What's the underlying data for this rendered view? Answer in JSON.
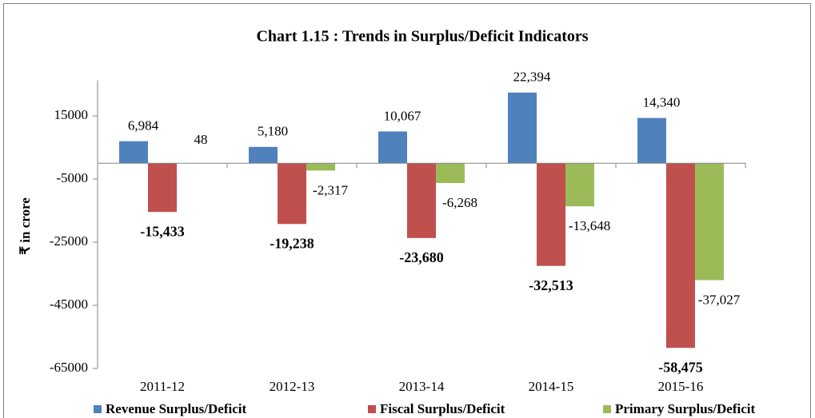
{
  "chart_data": {
    "type": "bar",
    "title": "Chart 1.15 : Trends in Surplus/Deficit Indicators",
    "y_label": "₹ in crore",
    "categories": [
      "2011-12",
      "2012-13",
      "2013-14",
      "2014-15",
      "2015-16"
    ],
    "series": [
      {
        "name": "Revenue Surplus/Deficit",
        "color": "#4f81bd",
        "values": [
          6984,
          5180,
          10067,
          22394,
          14340
        ],
        "value_labels": [
          "6,984",
          "5,180",
          "10,067",
          "22,394",
          "14,340"
        ]
      },
      {
        "name": "Fiscal Surplus/Deficit",
        "color": "#c0504d",
        "values": [
          -15433,
          -19238,
          -23680,
          -32513,
          -58475
        ],
        "value_labels": [
          "-15,433",
          "-19,238",
          "-23,680",
          "-32,513",
          "-58,475"
        ]
      },
      {
        "name": "Primary Surplus/Deficit",
        "color": "#9bbb59",
        "values": [
          48,
          -2317,
          -6268,
          -13648,
          -37027
        ],
        "value_labels": [
          "48",
          "-2,317",
          "-6,268",
          "-13,648",
          "-37,027"
        ]
      }
    ],
    "ylim": [
      -65000,
      25000
    ],
    "yticks": [
      -65000,
      -45000,
      -25000,
      -5000,
      15000
    ],
    "legend": "bottom"
  }
}
